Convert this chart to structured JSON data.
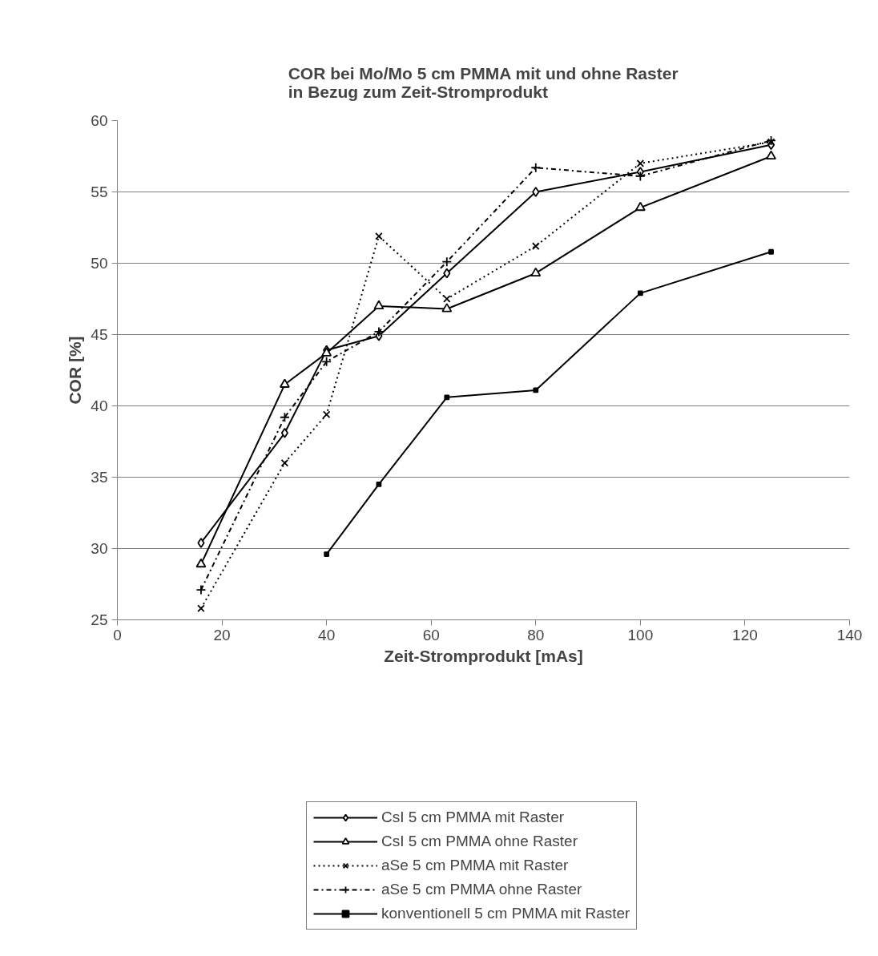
{
  "chart_data": {
    "type": "line",
    "title": "COR bei Mo/Mo 5 cm PMMA mit und ohne Raster in Bezug zum Zeit-Stromprodukt",
    "xlabel": "Zeit-Stromprodukt [mAs]",
    "ylabel": "COR [%]",
    "x": [
      16,
      32,
      40,
      50,
      63,
      80,
      100,
      125
    ],
    "series": [
      {
        "name": "CsI 5 cm PMMA mit Raster",
        "color": "#000000",
        "marker": "diamond",
        "line_style": "solid",
        "values": [
          30.4,
          38.1,
          43.9,
          44.9,
          49.3,
          55.0,
          56.4,
          58.3
        ]
      },
      {
        "name": "CsI 5 cm PMMA ohne Raster",
        "color": "#000000",
        "marker": "triangle",
        "line_style": "solid",
        "values": [
          28.9,
          41.5,
          43.7,
          47.0,
          46.8,
          49.3,
          53.9,
          57.5
        ]
      },
      {
        "name": "aSe 5 cm PMMA mit Raster",
        "color": "#000000",
        "marker": "x",
        "line_style": "dotted",
        "values": [
          25.8,
          36.0,
          39.4,
          51.9,
          47.5,
          51.2,
          57.0,
          58.5
        ]
      },
      {
        "name": "aSe 5 cm PMMA ohne Raster",
        "color": "#000000",
        "marker": "cross",
        "line_style": "dashdot",
        "values": [
          27.1,
          39.2,
          43.1,
          45.2,
          50.1,
          56.7,
          56.1,
          58.6
        ]
      },
      {
        "name": "konventionell 5 cm PMMA mit Raster",
        "color": "#000000",
        "marker": "square",
        "line_style": "solid",
        "values": [
          null,
          null,
          29.6,
          34.5,
          40.6,
          41.1,
          47.9,
          50.8
        ]
      }
    ],
    "xlim": [
      0,
      140
    ],
    "xticks": [
      0,
      20,
      40,
      60,
      80,
      100,
      120,
      140
    ],
    "ylim": [
      25,
      60
    ],
    "yticks": [
      25,
      30,
      35,
      40,
      45,
      50,
      55,
      60
    ],
    "grid": "y",
    "legend": "bottom"
  }
}
